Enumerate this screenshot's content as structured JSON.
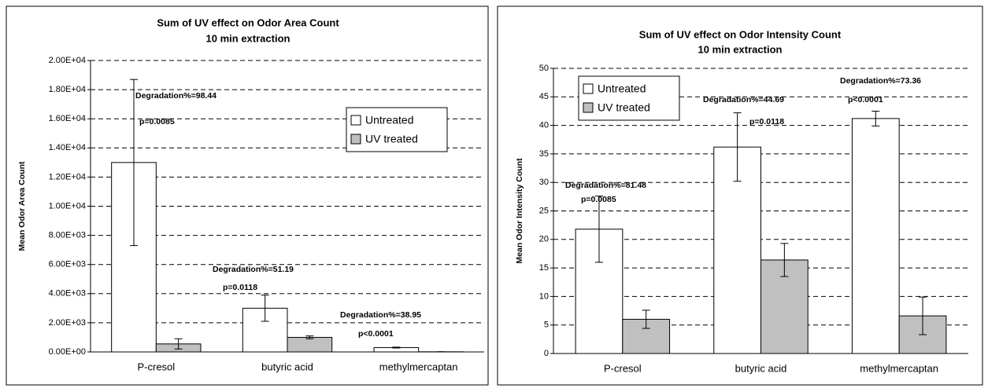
{
  "chart_data": [
    {
      "type": "bar",
      "title": "Sum of UV effect on Odor Area Count",
      "subtitle": "10 min extraction",
      "y_label": "Mean Odor Area Count",
      "categories": [
        "P-cresol",
        "butyric acid",
        "methylmercaptan"
      ],
      "series": [
        {
          "name": "Untreated",
          "color": "#ffffff",
          "values": [
            13000,
            3000,
            300
          ],
          "errors": [
            5700,
            900,
            30
          ]
        },
        {
          "name": "UV treated",
          "color": "#c0c0c0",
          "values": [
            550,
            1000,
            10
          ],
          "errors": [
            350,
            100,
            5
          ]
        }
      ],
      "annotations": [
        [
          "Degradation%=98.44",
          "p=0.0085"
        ],
        [
          "Degradation%=51.19",
          "p=0.0118"
        ],
        [
          "Degradation%=38.95",
          "p<0.0001"
        ]
      ],
      "ylim": [
        0,
        20000
      ],
      "yticks": [
        {
          "value": 0,
          "label": "0.00E+00"
        },
        {
          "value": 2000,
          "label": "2.00E+03"
        },
        {
          "value": 4000,
          "label": "4.00E+03"
        },
        {
          "value": 6000,
          "label": "6.00E+03"
        },
        {
          "value": 8000,
          "label": "8.00E+03"
        },
        {
          "value": 10000,
          "label": "1.00E+04"
        },
        {
          "value": 12000,
          "label": "1.20E+04"
        },
        {
          "value": 14000,
          "label": "1.40E+04"
        },
        {
          "value": 16000,
          "label": "1.60E+04"
        },
        {
          "value": 18000,
          "label": "1.80E+04"
        },
        {
          "value": 20000,
          "label": "2.00E+04"
        }
      ],
      "grid": true,
      "legend": "upper right"
    },
    {
      "type": "bar",
      "title": "Sum of UV effect on Odor Intensity Count",
      "subtitle": "10 min extraction",
      "y_label": "Mean Odor Intensity Count",
      "categories": [
        "P-cresol",
        "butyric acid",
        "methylmercaptan"
      ],
      "series": [
        {
          "name": "Untreated",
          "color": "#ffffff",
          "values": [
            21.8,
            36.2,
            41.2
          ],
          "errors": [
            5.8,
            6,
            1.3
          ]
        },
        {
          "name": "UV treated",
          "color": "#c0c0c0",
          "values": [
            6,
            16.4,
            6.6
          ],
          "errors": [
            1.6,
            2.9,
            3.3
          ]
        }
      ],
      "annotations": [
        [
          "Degradation%=81.48",
          "p=0.0085"
        ],
        [
          "Degradation%=44.69",
          "p=0.0118"
        ],
        [
          "Degradation%=73.36",
          "p<0.0001"
        ]
      ],
      "ylim": [
        0,
        50
      ],
      "yticks": [
        0,
        5,
        10,
        15,
        20,
        25,
        30,
        35,
        40,
        45,
        50
      ],
      "grid": true,
      "legend": "upper left"
    }
  ]
}
